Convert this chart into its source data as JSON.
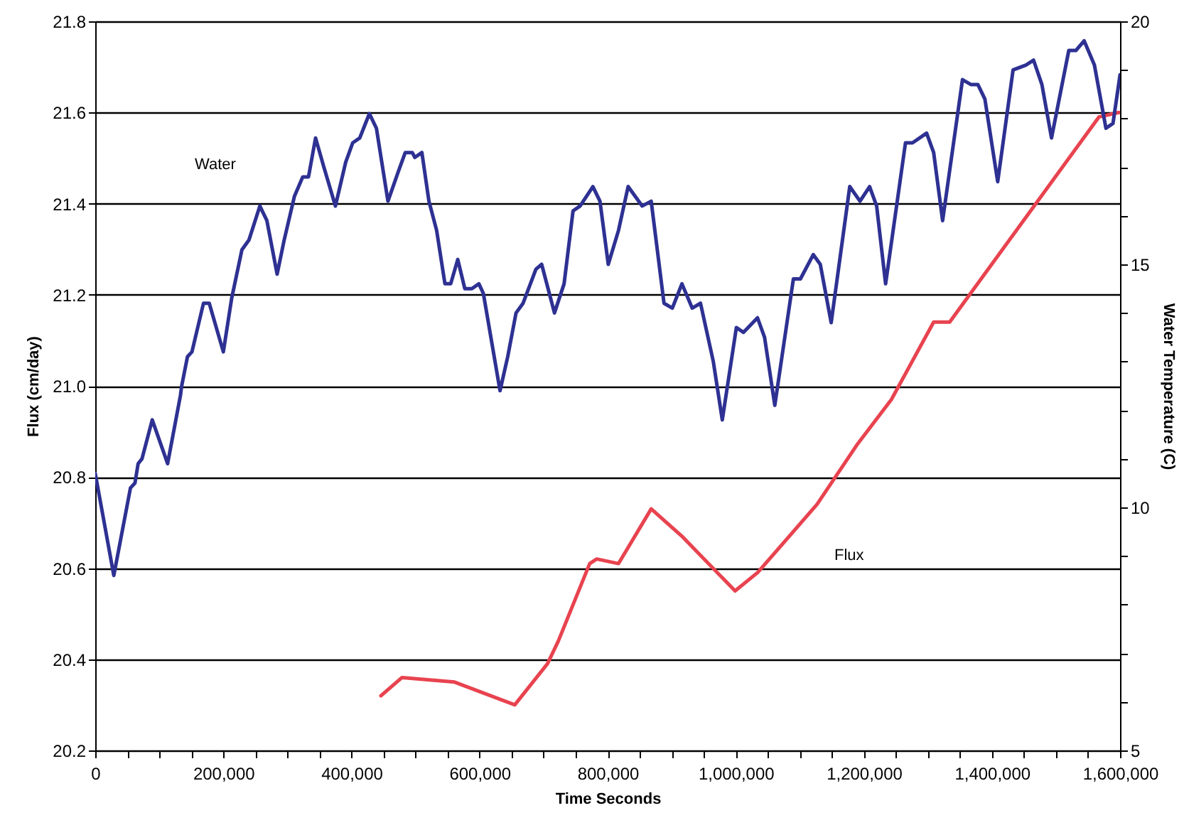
{
  "chart_data": {
    "type": "line",
    "xlabel": "Time Seconds",
    "ylabel": "Flux (cm/day)",
    "y2label": "Water Temperature (C)",
    "grid": "y",
    "xlim": [
      0,
      1600000
    ],
    "xticks": [
      0,
      {
        "value": 50000,
        "label": null
      },
      {
        "value": 100000,
        "label": null
      },
      {
        "value": 150000,
        "label": null
      },
      {
        "value": 200000,
        "label": "200,000"
      },
      {
        "value": 250000,
        "label": null
      },
      {
        "value": 300000,
        "label": null
      },
      {
        "value": 350000,
        "label": null
      },
      {
        "value": 400000,
        "label": "400,000"
      },
      {
        "value": 450000,
        "label": null
      },
      {
        "value": 500000,
        "label": null
      },
      {
        "value": 550000,
        "label": null
      },
      {
        "value": 600000,
        "label": "600,000"
      },
      {
        "value": 650000,
        "label": null
      },
      {
        "value": 700000,
        "label": null
      },
      {
        "value": 750000,
        "label": null
      },
      {
        "value": 800000,
        "label": "800,000"
      },
      {
        "value": 850000,
        "label": null
      },
      {
        "value": 900000,
        "label": null
      },
      {
        "value": 950000,
        "label": null
      },
      {
        "value": 1000000,
        "label": "1,000,000"
      },
      {
        "value": 1050000,
        "label": null
      },
      {
        "value": 1100000,
        "label": null
      },
      {
        "value": 1150000,
        "label": null
      },
      {
        "value": 1200000,
        "label": "1,200,000"
      },
      {
        "value": 1250000,
        "label": null
      },
      {
        "value": 1300000,
        "label": null
      },
      {
        "value": 1350000,
        "label": null
      },
      {
        "value": 1400000,
        "label": "1,400,000"
      },
      {
        "value": 1450000,
        "label": null
      },
      {
        "value": 1500000,
        "label": null
      },
      {
        "value": 1550000,
        "label": null
      },
      {
        "value": 1600000,
        "label": "1,600,000"
      }
    ],
    "ylim": [
      20.2,
      21.8
    ],
    "yticks": [
      {
        "value": 20.2,
        "label": "20.2"
      },
      {
        "value": 20.4,
        "label": "20.4"
      },
      {
        "value": 20.6,
        "label": "20.6"
      },
      {
        "value": 20.8,
        "label": "20.8"
      },
      {
        "value": 21.0,
        "label": "21.0"
      },
      {
        "value": 21.2,
        "label": "21.2"
      },
      {
        "value": 21.4,
        "label": "21.4"
      },
      {
        "value": 21.6,
        "label": "21.6"
      },
      {
        "value": 21.8,
        "label": "21.8"
      }
    ],
    "y2lim": [
      5,
      20
    ],
    "y2ticks": [
      5,
      {
        "value": 6,
        "label": null
      },
      {
        "value": 7,
        "label": null
      },
      {
        "value": 8,
        "label": null
      },
      {
        "value": 9,
        "label": null
      },
      10,
      {
        "value": 11,
        "label": null
      },
      {
        "value": 12,
        "label": null
      },
      {
        "value": 13,
        "label": null
      },
      {
        "value": 14,
        "label": null
      },
      15,
      {
        "value": 16,
        "label": null
      },
      {
        "value": 17,
        "label": null
      },
      {
        "value": 18,
        "label": null
      },
      {
        "value": 19,
        "label": null
      },
      20
    ],
    "series": [
      {
        "name": "Flux",
        "color": "#e8434f",
        "x": [
          446000,
          479000,
          561000,
          655000,
          706000,
          723000,
          772000,
          783000,
          817000,
          868000,
          916000,
          999000,
          1034000,
          1127000,
          1189000,
          1243000,
          1309000,
          1334000,
          1567000,
          1598000
        ],
        "values": [
          20.32,
          20.36,
          20.35,
          20.3,
          20.39,
          20.44,
          20.61,
          20.62,
          20.61,
          20.73,
          20.67,
          20.55,
          20.59,
          20.74,
          20.87,
          20.97,
          21.14,
          21.14,
          21.59,
          21.6
        ]
      },
      {
        "name": "Water",
        "color": "#2e3192",
        "axis": "y2",
        "x": [
          0,
          29000,
          55000,
          62000,
          67000,
          73000,
          89000,
          113000,
          133000,
          135000,
          144000,
          151000,
          169000,
          178000,
          200000,
          213000,
          229000,
          240000,
          257000,
          268000,
          284000,
          295000,
          311000,
          324000,
          333000,
          344000,
          357000,
          375000,
          391000,
          402000,
          413000,
          428000,
          439000,
          457000,
          473000,
          484000,
          495000,
          499000,
          510000,
          521000,
          533000,
          546000,
          555000,
          566000,
          577000,
          588000,
          599000,
          606000,
          632000,
          644000,
          657000,
          668000,
          688000,
          697000,
          717000,
          732000,
          746000,
          757000,
          777000,
          788000,
          801000,
          817000,
          832000,
          854000,
          868000,
          888000,
          901000,
          916000,
          932000,
          945000,
          965000,
          979000,
          1001000,
          1012000,
          1034000,
          1045000,
          1061000,
          1090000,
          1101000,
          1121000,
          1132000,
          1149000,
          1178000,
          1194000,
          1209000,
          1220000,
          1234000,
          1265000,
          1276000,
          1298000,
          1309000,
          1323000,
          1354000,
          1367000,
          1378000,
          1389000,
          1409000,
          1433000,
          1453000,
          1465000,
          1478000,
          1493000,
          1520000,
          1531000,
          1544000,
          1560000,
          1578000,
          1589000,
          1600000
        ],
        "values": [
          10.7,
          8.6,
          10.4,
          10.5,
          10.9,
          11.0,
          11.8,
          10.9,
          12.3,
          12.5,
          13.1,
          13.2,
          14.2,
          14.2,
          13.2,
          14.3,
          15.3,
          15.5,
          16.2,
          15.9,
          14.8,
          15.5,
          16.4,
          16.8,
          16.8,
          17.6,
          17.0,
          16.2,
          17.1,
          17.5,
          17.6,
          18.1,
          17.8,
          16.3,
          16.9,
          17.3,
          17.3,
          17.2,
          17.3,
          16.3,
          15.7,
          14.6,
          14.6,
          15.1,
          14.5,
          14.5,
          14.6,
          14.4,
          12.4,
          13.1,
          14.0,
          14.2,
          14.9,
          15.0,
          14.0,
          14.6,
          16.1,
          16.2,
          16.6,
          16.3,
          15.0,
          15.7,
          16.6,
          16.2,
          16.3,
          14.2,
          14.1,
          14.6,
          14.1,
          14.2,
          13.0,
          11.8,
          13.7,
          13.6,
          13.9,
          13.5,
          12.1,
          14.7,
          14.7,
          15.2,
          15.0,
          13.8,
          16.6,
          16.3,
          16.6,
          16.2,
          14.6,
          17.5,
          17.5,
          17.7,
          17.3,
          15.9,
          18.8,
          18.7,
          18.7,
          18.4,
          16.7,
          19.0,
          19.1,
          19.2,
          18.7,
          17.6,
          19.4,
          19.4,
          19.6,
          19.1,
          17.8,
          17.9,
          18.9
        ]
      }
    ]
  }
}
